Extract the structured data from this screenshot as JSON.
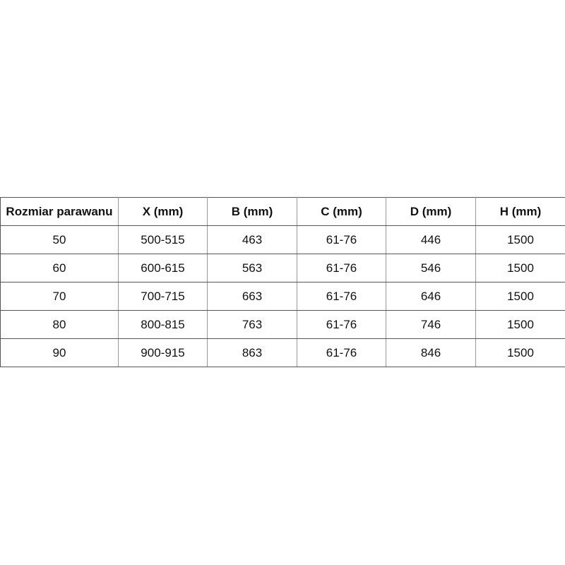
{
  "table": {
    "headers": [
      "Rozmiar parawanu",
      "X (mm)",
      "B (mm)",
      "C (mm)",
      "D (mm)",
      "H (mm)"
    ],
    "rows": [
      [
        "50",
        "500-515",
        "463",
        "61-76",
        "446",
        "1500"
      ],
      [
        "60",
        "600-615",
        "563",
        "61-76",
        "546",
        "1500"
      ],
      [
        "70",
        "700-715",
        "663",
        "61-76",
        "646",
        "1500"
      ],
      [
        "80",
        "800-815",
        "763",
        "61-76",
        "746",
        "1500"
      ],
      [
        "90",
        "900-915",
        "863",
        "61-76",
        "846",
        "1500"
      ]
    ]
  }
}
